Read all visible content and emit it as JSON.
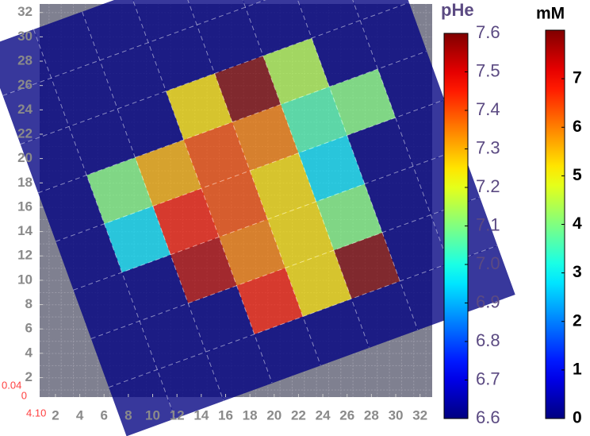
{
  "chart_data": {
    "type": "heatmap",
    "colormap": "jet",
    "xlim": [
      0.7,
      33
    ],
    "ylim": [
      0.4,
      32.7
    ],
    "xticks": [
      2,
      4,
      6,
      8,
      10,
      12,
      14,
      16,
      18,
      20,
      22,
      24,
      26,
      28,
      30,
      32
    ],
    "yticks": [
      2,
      4,
      6,
      8,
      10,
      12,
      14,
      16,
      18,
      20,
      22,
      24,
      26,
      28,
      30,
      32
    ],
    "annotations": [
      "0.04",
      "0",
      "4.10"
    ],
    "values": [
      [
        6.6,
        6.6,
        6.6,
        6.6,
        6.6,
        6.6,
        6.6,
        6.6
      ],
      [
        6.6,
        6.6,
        6.6,
        6.6,
        6.6,
        6.6,
        6.6,
        6.6
      ],
      [
        6.6,
        6.6,
        6.6,
        7.25,
        7.6,
        7.15,
        6.6,
        6.6
      ],
      [
        6.6,
        7.1,
        7.3,
        7.4,
        7.35,
        7.05,
        7.1,
        6.6
      ],
      [
        6.6,
        6.95,
        7.45,
        7.4,
        7.25,
        6.95,
        6.6,
        6.6
      ],
      [
        6.6,
        6.6,
        7.55,
        7.35,
        7.25,
        7.1,
        6.6,
        6.6
      ],
      [
        6.6,
        6.6,
        6.6,
        7.45,
        7.25,
        7.6,
        6.6,
        6.6
      ],
      [
        6.6,
        6.6,
        6.6,
        6.6,
        6.6,
        6.6,
        6.6,
        6.6
      ]
    ],
    "colorbars": [
      {
        "title": "pHe",
        "lim": [
          6.6,
          7.6
        ],
        "ticks": [
          6.6,
          6.7,
          6.8,
          6.9,
          {
            "value": 7,
            "label": "7.0"
          },
          7.1,
          7.2,
          7.3,
          7.4,
          7.5,
          7.6
        ]
      },
      {
        "title": "mM",
        "lim": [
          0,
          8
        ],
        "ticks": [
          0,
          1,
          2,
          3,
          4,
          5,
          6,
          7
        ]
      }
    ]
  }
}
